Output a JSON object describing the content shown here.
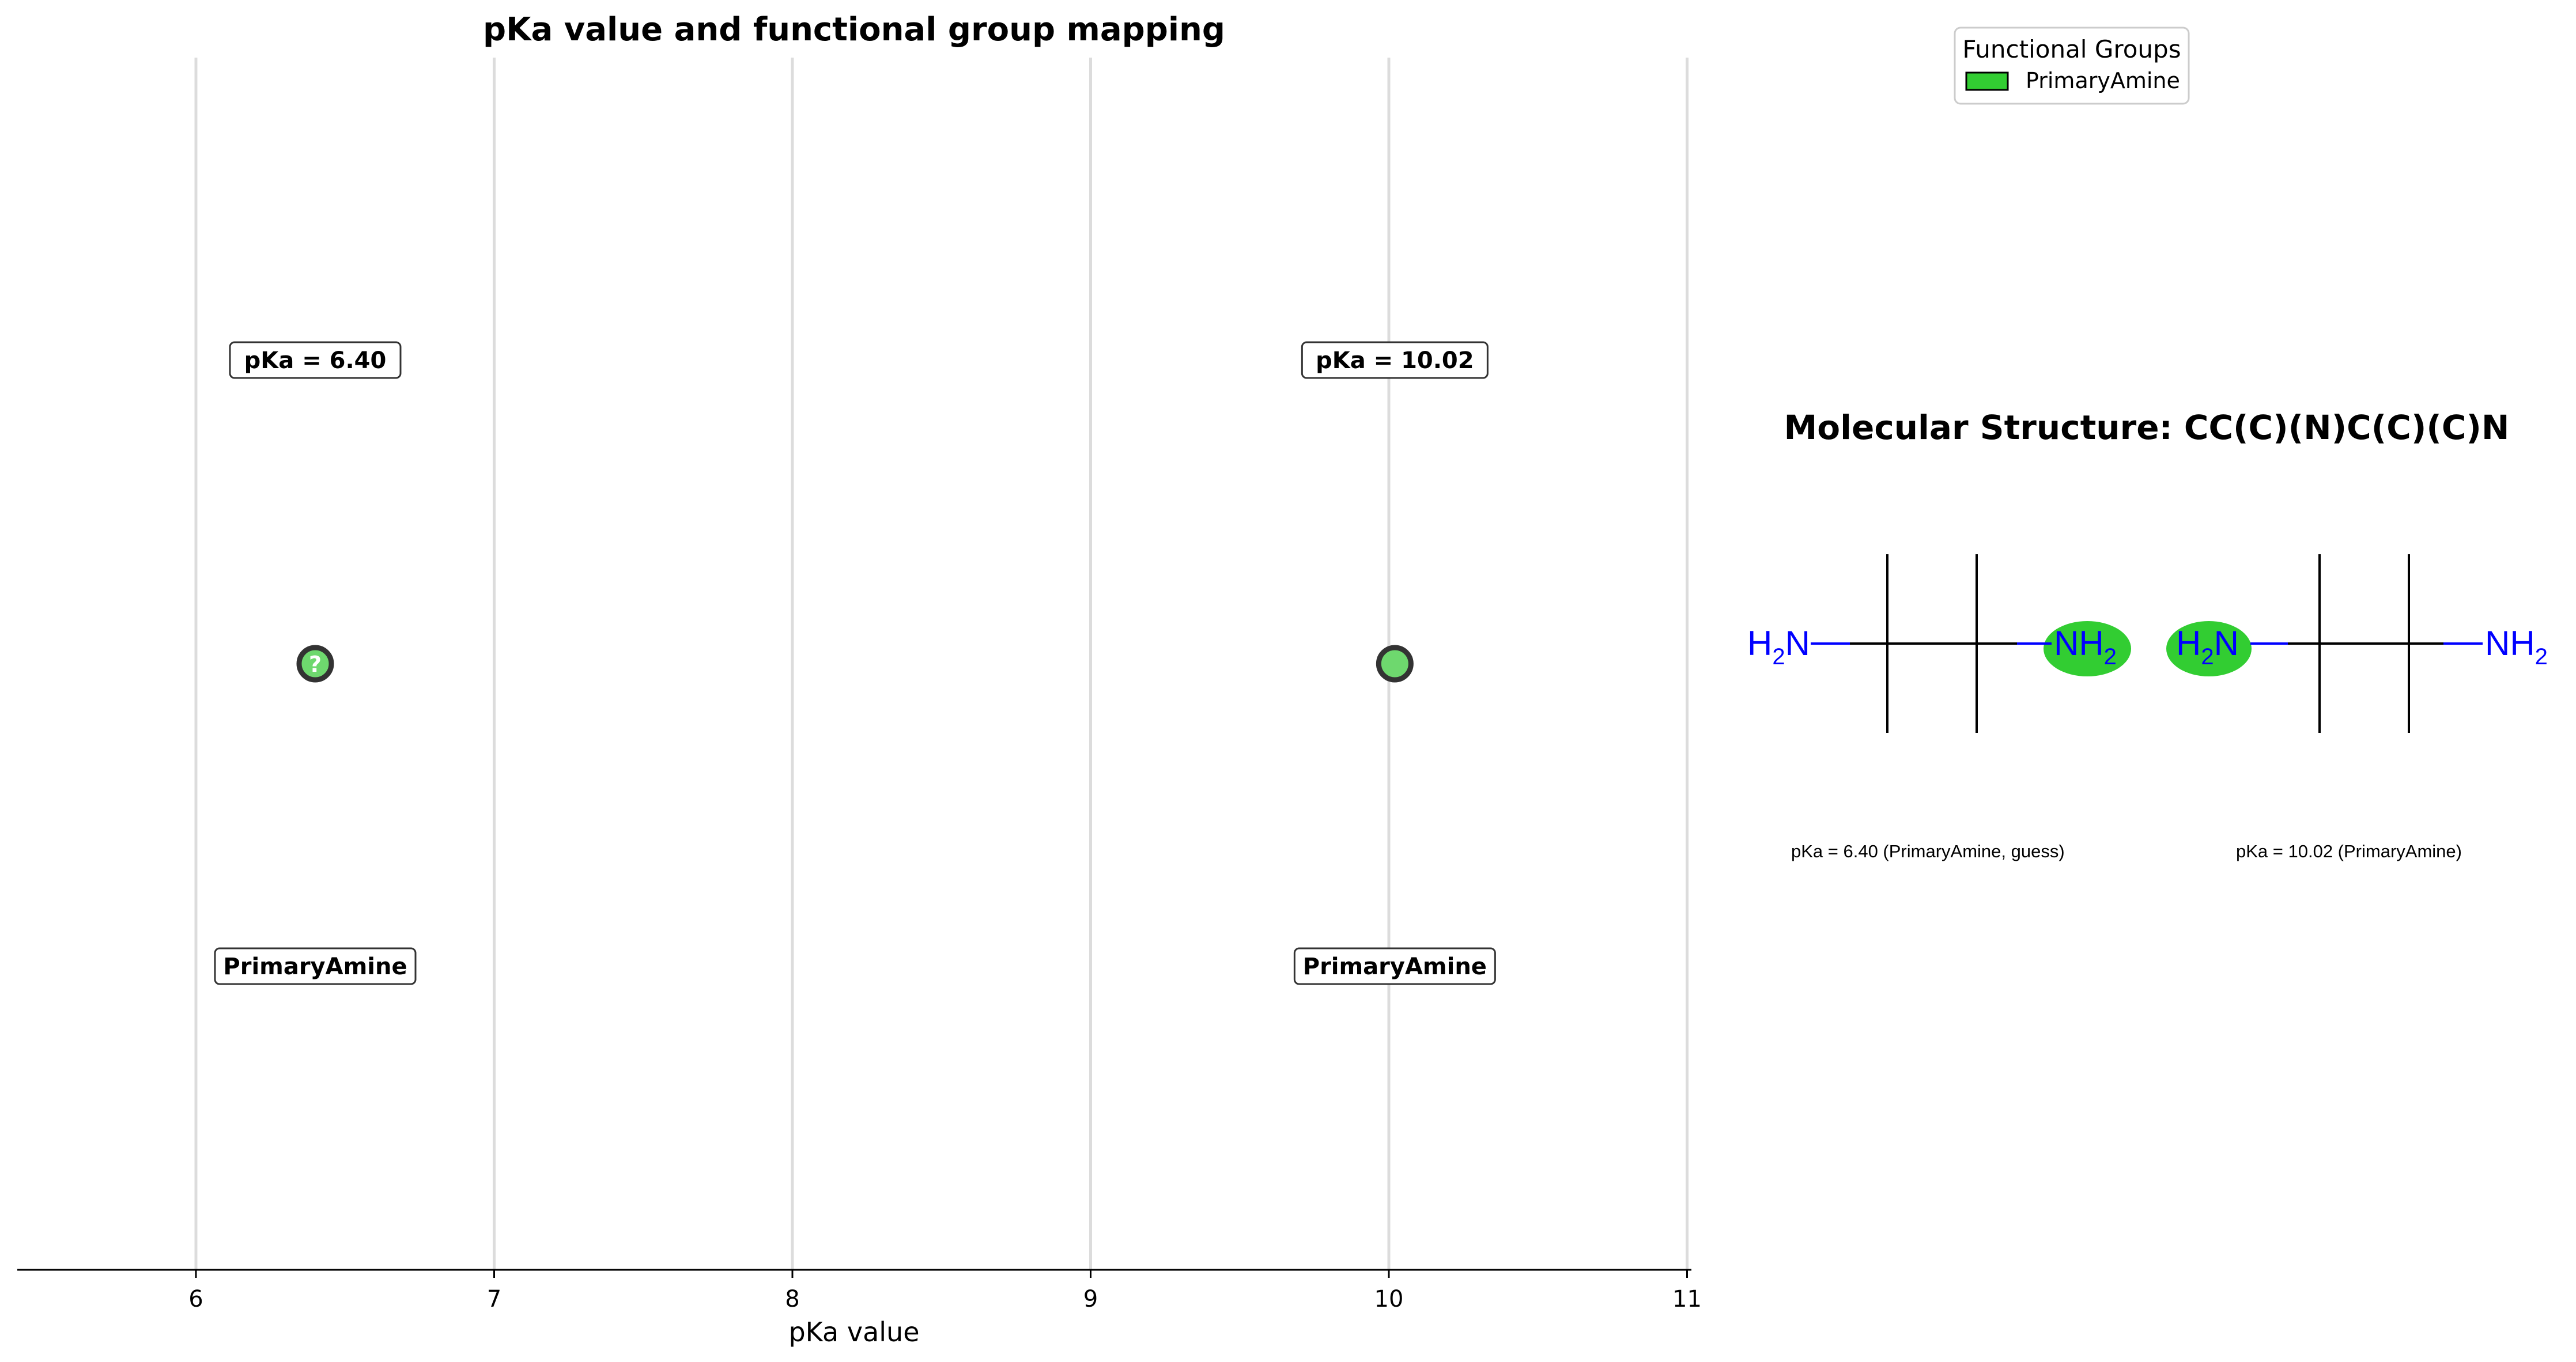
{
  "chart_data": {
    "type": "scatter",
    "title": "pKa value and functional group mapping",
    "xlabel": "pKa value",
    "ylabel": "",
    "xlim": [
      5.4,
      11.0
    ],
    "xticks": [
      6,
      7,
      8,
      9,
      10,
      11
    ],
    "grid": "vertical",
    "points": [
      {
        "x": 6.4,
        "group": "PrimaryAmine",
        "value_label": "pKa = 6.40",
        "group_label": "PrimaryAmine",
        "guess": true,
        "marker_text": "?"
      },
      {
        "x": 10.02,
        "group": "PrimaryAmine",
        "value_label": "pKa = 10.02",
        "group_label": "PrimaryAmine",
        "guess": false,
        "marker_text": ""
      }
    ],
    "colors": {
      "PrimaryAmine": "#32cd32",
      "marker_fill": "#6ed86e",
      "gridline": "#dcdcdc",
      "atom": "#0000ff"
    }
  },
  "legend": {
    "title": "Functional Groups",
    "placement": "top-right",
    "items": [
      {
        "label": "PrimaryAmine",
        "color": "#32cd32"
      }
    ]
  },
  "molecule": {
    "title": "Molecular Structure: CC(C)(N)C(C)(C)N",
    "atoms": {
      "amine_left": "H",
      "amine_right": "NH"
    },
    "subscript": "2",
    "n_label": "N",
    "captions": [
      "pKa = 6.40 (PrimaryAmine, guess)",
      "pKa = 10.02 (PrimaryAmine)"
    ]
  }
}
